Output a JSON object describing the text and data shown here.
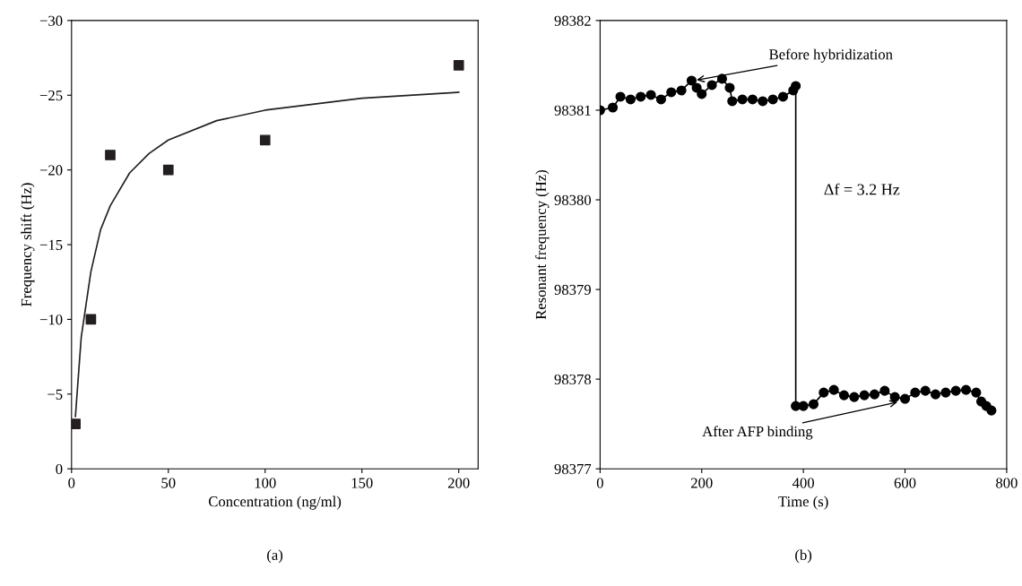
{
  "chart_data": [
    {
      "type": "scatter",
      "xlabel": "Concentration (ng/ml)",
      "ylabel": "Frequency shift (Hz)",
      "marker": "square",
      "grid": false,
      "legend": false,
      "xlim": [
        0,
        210
      ],
      "xticks": [
        0,
        50,
        100,
        150,
        200
      ],
      "ylim": [
        0,
        -30
      ],
      "yticks": [
        0,
        {
          "value": -5,
          "label": "−5"
        },
        {
          "value": -10,
          "label": "−10"
        },
        {
          "value": -15,
          "label": "−15"
        },
        {
          "value": -20,
          "label": "−20"
        },
        {
          "value": -25,
          "label": "−25"
        },
        {
          "value": -30,
          "label": "−30"
        }
      ],
      "annotations": [
        "(a)"
      ],
      "series": [
        {
          "type": "scatter",
          "color": "#231f20",
          "x": [
            2,
            10,
            20,
            50,
            100,
            200
          ],
          "values": [
            -3,
            -10,
            -21,
            -20,
            -22,
            -27
          ]
        },
        {
          "type": "line",
          "color": "#231f20",
          "marker": "none",
          "x": [
            2,
            5,
            10,
            15,
            20,
            30,
            40,
            50,
            75,
            100,
            150,
            200
          ],
          "values": [
            -3.5,
            -8.8,
            -13.2,
            -16.0,
            -17.6,
            -19.8,
            -21.1,
            -22.0,
            -23.3,
            -24.0,
            -24.8,
            -25.2
          ]
        }
      ]
    },
    {
      "type": "line",
      "xlabel": "Time (s)",
      "ylabel": "Resonant frequency (Hz)",
      "marker": "circle",
      "grid": false,
      "legend": false,
      "xlim": [
        0,
        800
      ],
      "xticks": [
        0,
        200,
        400,
        600,
        800
      ],
      "ylim": [
        98377,
        98382
      ],
      "yticks": [
        98377,
        98378,
        98379,
        98380,
        98381,
        98382
      ],
      "annotations": [
        {
          "text": "Before hybridization",
          "x": 185,
          "y": 98381.33
        },
        {
          "text": "After AFP binding",
          "x": 590,
          "y": 98377.75
        },
        "Δf = 3.2 Hz",
        "(b)"
      ],
      "series": [
        {
          "color": "#000000",
          "x": [
            0,
            25,
            40,
            60,
            80,
            100,
            120,
            140,
            160,
            180,
            190,
            200,
            220,
            240,
            255,
            260,
            280,
            300,
            320,
            340,
            360,
            380,
            385,
            385,
            400,
            420,
            440,
            460,
            480,
            500,
            520,
            540,
            560,
            580,
            600,
            620,
            640,
            660,
            680,
            700,
            720,
            740,
            750,
            760,
            770
          ],
          "values": [
            98381.0,
            98381.03,
            98381.15,
            98381.12,
            98381.15,
            98381.17,
            98381.12,
            98381.2,
            98381.22,
            98381.33,
            98381.25,
            98381.18,
            98381.28,
            98381.35,
            98381.25,
            98381.1,
            98381.12,
            98381.12,
            98381.1,
            98381.12,
            98381.15,
            98381.22,
            98381.27,
            98377.7,
            98377.7,
            98377.72,
            98377.85,
            98377.88,
            98377.82,
            98377.8,
            98377.82,
            98377.83,
            98377.87,
            98377.8,
            98377.78,
            98377.85,
            98377.87,
            98377.83,
            98377.85,
            98377.87,
            98377.88,
            98377.85,
            98377.75,
            98377.7,
            98377.65
          ]
        }
      ]
    }
  ]
}
